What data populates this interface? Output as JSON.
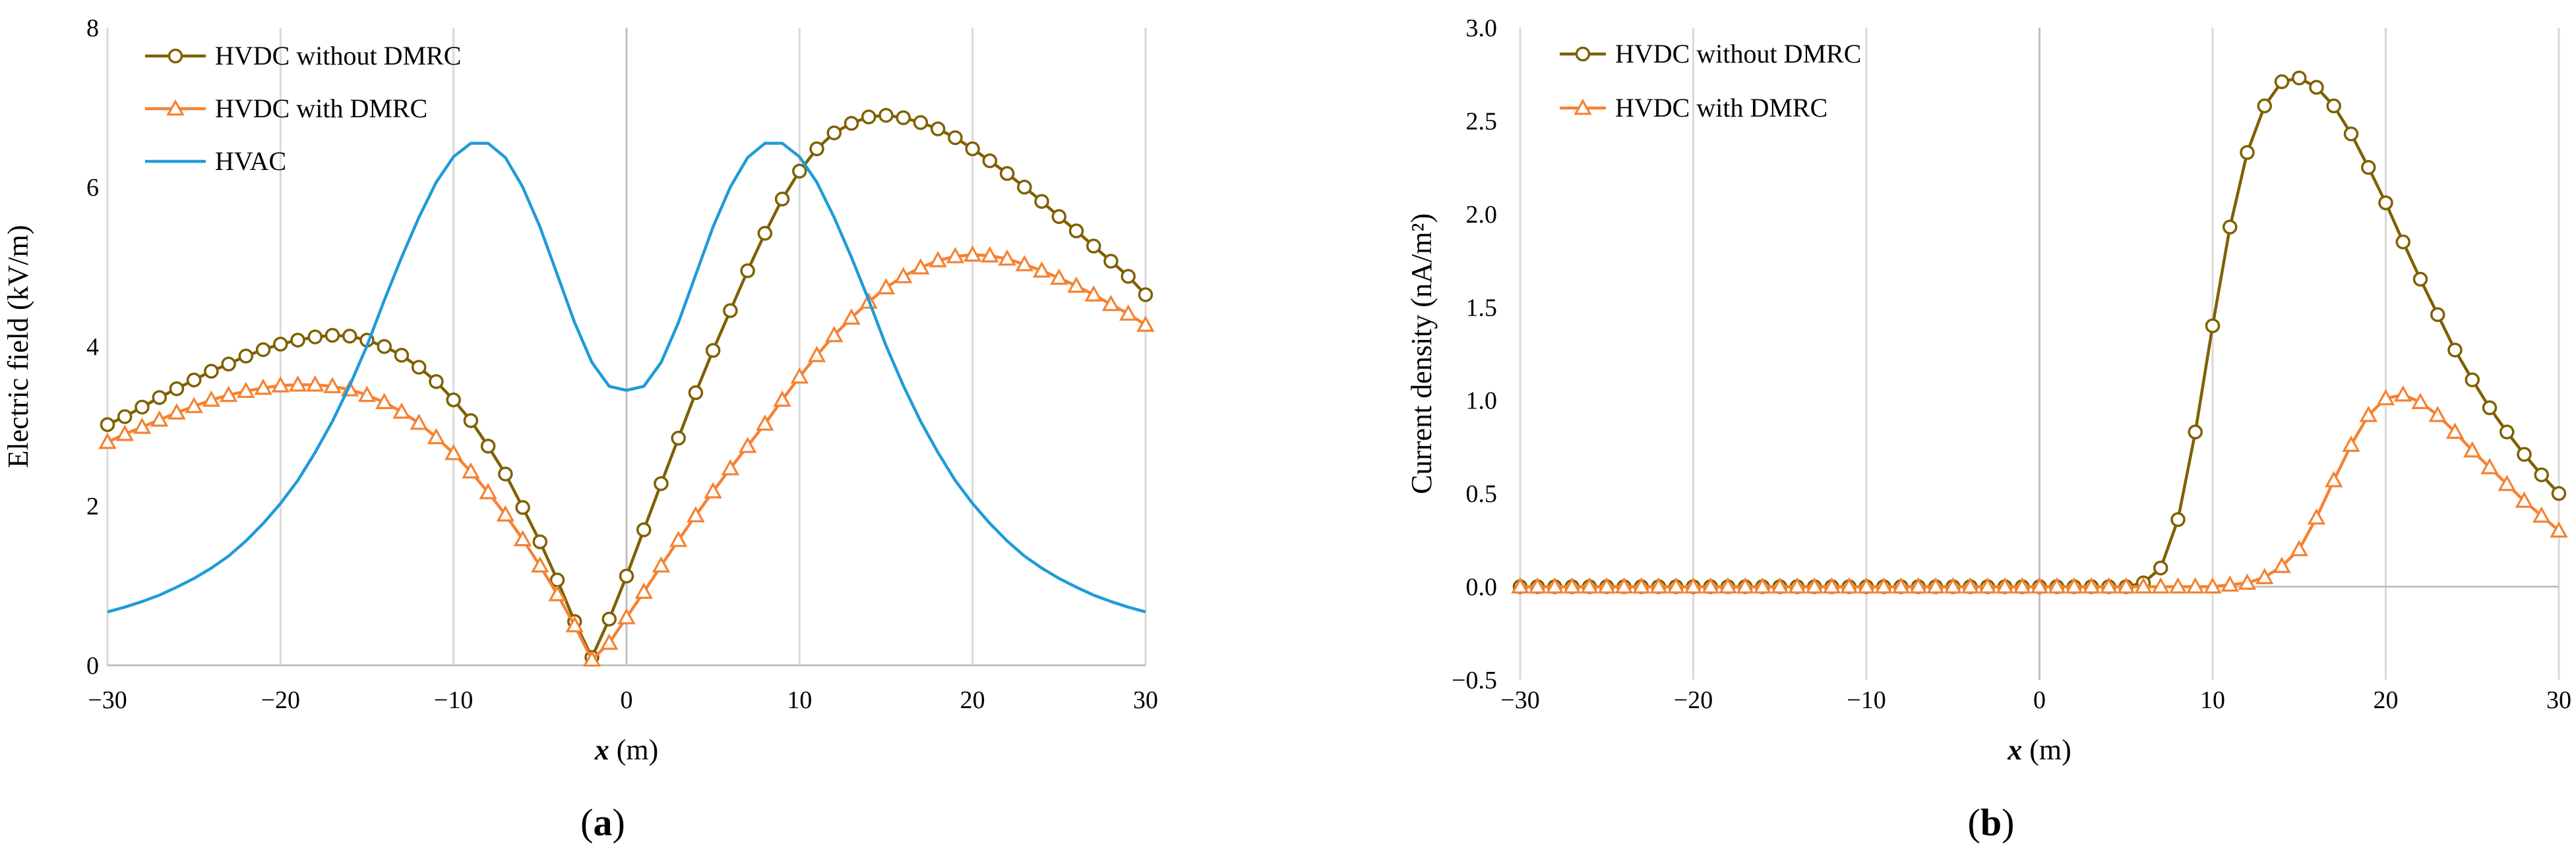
{
  "panels": [
    {
      "panel_label": "(a)",
      "chart_data": {
        "type": "line",
        "title": "",
        "xlabel": "x (m)",
        "xlabel_var": "x",
        "xlabel_unit": " (m)",
        "ylabel": "Electric field (kV/m)",
        "xlim": [
          -30,
          30
        ],
        "ylim": [
          0,
          8
        ],
        "xticks": [
          -30,
          -20,
          -10,
          0,
          10,
          20,
          30
        ],
        "xtick_labels": [
          "−30",
          "−20",
          "−10",
          "0",
          "10",
          "20",
          "30"
        ],
        "yticks": [
          0,
          2,
          4,
          6,
          8
        ],
        "ytick_labels": [
          "0",
          "2",
          "4",
          "6",
          "8"
        ],
        "grid": "vertical",
        "legend_position": "top-left",
        "x": [
          -30,
          -29,
          -28,
          -27,
          -26,
          -25,
          -24,
          -23,
          -22,
          -21,
          -20,
          -19,
          -18,
          -17,
          -16,
          -15,
          -14,
          -13,
          -12,
          -11,
          -10,
          -9,
          -8,
          -7,
          -6,
          -5,
          -4,
          -3,
          -2,
          -1,
          0,
          1,
          2,
          3,
          4,
          5,
          6,
          7,
          8,
          9,
          10,
          11,
          12,
          13,
          14,
          15,
          16,
          17,
          18,
          19,
          20,
          21,
          22,
          23,
          24,
          25,
          26,
          27,
          28,
          29,
          30
        ],
        "series": [
          {
            "name": "HVDC without DMRC",
            "color": "#7f6000",
            "marker": "circle",
            "values": [
              3.02,
              3.12,
              3.24,
              3.36,
              3.47,
              3.58,
              3.69,
              3.78,
              3.88,
              3.96,
              4.03,
              4.08,
              4.12,
              4.14,
              4.13,
              4.08,
              4.0,
              3.89,
              3.74,
              3.56,
              3.33,
              3.07,
              2.75,
              2.4,
              1.98,
              1.55,
              1.07,
              0.55,
              0.1,
              0.58,
              1.12,
              1.7,
              2.28,
              2.85,
              3.42,
              3.95,
              4.45,
              4.95,
              5.42,
              5.85,
              6.2,
              6.48,
              6.68,
              6.8,
              6.88,
              6.9,
              6.87,
              6.81,
              6.73,
              6.62,
              6.48,
              6.33,
              6.17,
              6.0,
              5.82,
              5.63,
              5.45,
              5.26,
              5.07,
              4.88,
              4.65
            ]
          },
          {
            "name": "HVDC with DMRC",
            "color": "#f58232",
            "marker": "triangle",
            "values": [
              2.8,
              2.9,
              2.99,
              3.08,
              3.17,
              3.25,
              3.33,
              3.39,
              3.44,
              3.48,
              3.51,
              3.52,
              3.52,
              3.5,
              3.46,
              3.39,
              3.3,
              3.18,
              3.04,
              2.86,
              2.66,
              2.43,
              2.17,
              1.89,
              1.58,
              1.25,
              0.89,
              0.5,
              0.07,
              0.28,
              0.6,
              0.92,
              1.25,
              1.57,
              1.88,
              2.18,
              2.47,
              2.75,
              3.03,
              3.33,
              3.62,
              3.89,
              4.14,
              4.36,
              4.56,
              4.74,
              4.88,
              4.99,
              5.08,
              5.13,
              5.15,
              5.14,
              5.1,
              5.03,
              4.95,
              4.86,
              4.76,
              4.65,
              4.53,
              4.41,
              4.27
            ]
          },
          {
            "name": "HVAC",
            "color": "#1f9bd8",
            "marker": "none",
            "values": [
              0.67,
              0.73,
              0.8,
              0.88,
              0.98,
              1.09,
              1.22,
              1.37,
              1.56,
              1.78,
              2.03,
              2.32,
              2.67,
              3.06,
              3.51,
              4.01,
              4.58,
              5.12,
              5.62,
              6.06,
              6.38,
              6.55,
              6.55,
              6.37,
              6.0,
              5.5,
              4.9,
              4.3,
              3.8,
              3.5,
              3.45,
              3.5,
              3.8,
              4.3,
              4.9,
              5.5,
              6.0,
              6.37,
              6.55,
              6.55,
              6.38,
              6.06,
              5.62,
              5.12,
              4.58,
              4.01,
              3.51,
              3.06,
              2.67,
              2.32,
              2.03,
              1.78,
              1.56,
              1.37,
              1.22,
              1.09,
              0.98,
              0.88,
              0.8,
              0.73,
              0.67
            ]
          }
        ]
      }
    },
    {
      "panel_label": "(b)",
      "chart_data": {
        "type": "line",
        "title": "",
        "xlabel": "x (m)",
        "xlabel_var": "x",
        "xlabel_unit": " (m)",
        "ylabel": "Current density (nA/m²)",
        "xlim": [
          -30,
          30
        ],
        "ylim": [
          -0.5,
          3.0
        ],
        "xticks": [
          -30,
          -20,
          -10,
          0,
          10,
          20,
          30
        ],
        "xtick_labels": [
          "−30",
          "−20",
          "−10",
          "0",
          "10",
          "20",
          "30"
        ],
        "yticks": [
          -0.5,
          0.0,
          0.5,
          1.0,
          1.5,
          2.0,
          2.5,
          3.0
        ],
        "ytick_labels": [
          "−0.5",
          "0.0",
          "0.5",
          "1.0",
          "1.5",
          "2.0",
          "2.5",
          "3.0"
        ],
        "grid": "vertical",
        "legend_position": "top-left",
        "x": [
          -30,
          -29,
          -28,
          -27,
          -26,
          -25,
          -24,
          -23,
          -22,
          -21,
          -20,
          -19,
          -18,
          -17,
          -16,
          -15,
          -14,
          -13,
          -12,
          -11,
          -10,
          -9,
          -8,
          -7,
          -6,
          -5,
          -4,
          -3,
          -2,
          -1,
          0,
          1,
          2,
          3,
          4,
          5,
          6,
          7,
          8,
          9,
          10,
          11,
          12,
          13,
          14,
          15,
          16,
          17,
          18,
          19,
          20,
          21,
          22,
          23,
          24,
          25,
          26,
          27,
          28,
          29,
          30
        ],
        "series": [
          {
            "name": "HVDC without DMRC",
            "color": "#7f6000",
            "marker": "circle",
            "values": [
              0,
              0,
              0,
              0,
              0,
              0,
              0,
              0,
              0,
              0,
              0,
              0,
              0,
              0,
              0,
              0,
              0,
              0,
              0,
              0,
              0,
              0,
              0,
              0,
              0,
              0,
              0,
              0,
              0,
              0,
              0,
              0,
              0,
              0,
              0,
              0,
              0.02,
              0.1,
              0.36,
              0.83,
              1.4,
              1.93,
              2.33,
              2.58,
              2.71,
              2.73,
              2.68,
              2.58,
              2.43,
              2.25,
              2.06,
              1.85,
              1.65,
              1.46,
              1.27,
              1.11,
              0.96,
              0.83,
              0.71,
              0.6,
              0.5
            ]
          },
          {
            "name": "HVDC with DMRC",
            "color": "#f58232",
            "marker": "triangle",
            "values": [
              0,
              0,
              0,
              0,
              0,
              0,
              0,
              0,
              0,
              0,
              0,
              0,
              0,
              0,
              0,
              0,
              0,
              0,
              0,
              0,
              0,
              0,
              0,
              0,
              0,
              0,
              0,
              0,
              0,
              0,
              0,
              0,
              0,
              0,
              0,
              0,
              0,
              0,
              0,
              0,
              0,
              0.01,
              0.02,
              0.05,
              0.11,
              0.2,
              0.37,
              0.57,
              0.76,
              0.92,
              1.01,
              1.03,
              0.99,
              0.92,
              0.83,
              0.73,
              0.64,
              0.55,
              0.46,
              0.38,
              0.3
            ]
          }
        ]
      }
    }
  ]
}
